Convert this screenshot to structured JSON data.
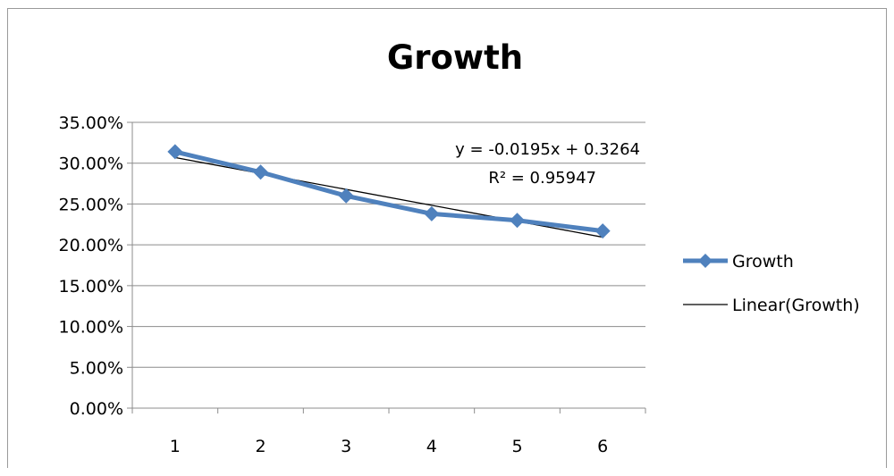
{
  "chart_data": {
    "type": "line",
    "title": "Growth",
    "xlabel": "",
    "ylabel": "",
    "categories": [
      "1",
      "2",
      "3",
      "4",
      "5",
      "6"
    ],
    "series": [
      {
        "name": "Growth",
        "values": [
          0.314,
          0.289,
          0.26,
          0.238,
          0.23,
          0.217
        ],
        "color": "#4f81bd",
        "marker": "diamond"
      }
    ],
    "trendline": {
      "name": "Linear(Growth)",
      "type": "linear",
      "slope": -0.0195,
      "intercept": 0.3264,
      "color": "#000000"
    },
    "annotations": {
      "equation": "y = -0.0195x + 0.3264",
      "r_squared": "R² = 0.95947"
    },
    "ylim": [
      0,
      0.35
    ],
    "y_ticks": [
      0,
      0.05,
      0.1,
      0.15,
      0.2,
      0.25,
      0.3,
      0.35
    ],
    "y_tick_labels": [
      "0.00%",
      "5.00%",
      "10.00%",
      "15.00%",
      "20.00%",
      "25.00%",
      "30.00%",
      "35.00%"
    ],
    "grid": true,
    "legend_position": "right"
  }
}
